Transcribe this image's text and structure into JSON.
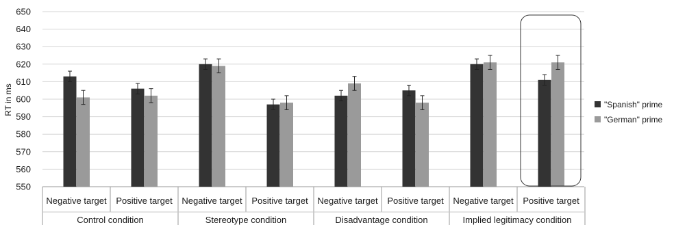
{
  "chart_data": {
    "type": "bar",
    "title": "",
    "xlabel": "",
    "ylabel": "RT in ms",
    "ylim": [
      550,
      650
    ],
    "yticks": [
      550,
      560,
      570,
      580,
      590,
      600,
      610,
      620,
      630,
      640,
      650
    ],
    "grid": true,
    "legend_position": "right",
    "categories": [
      "Negative target",
      "Positive target",
      "Negative target",
      "Positive target",
      "Negative target",
      "Positive target",
      "Negative target",
      "Positive target"
    ],
    "groups": [
      "Control condition",
      "Stereotype condition",
      "Disadvantage condition",
      "Implied legitimacy condition"
    ],
    "series": [
      {
        "name": "\"Spanish\" prime",
        "color": "#333333",
        "values": [
          613,
          606,
          620,
          597,
          602,
          605,
          620,
          611
        ],
        "errors": [
          3,
          3,
          3,
          3,
          3,
          3,
          3,
          3
        ]
      },
      {
        "name": "\"German\" prime",
        "color": "#9a9a9a",
        "values": [
          601,
          602,
          619,
          598,
          609,
          598,
          621,
          621
        ],
        "errors": [
          4,
          4,
          4,
          4,
          4,
          4,
          4,
          4
        ]
      }
    ],
    "highlighted_category_index": 7
  }
}
